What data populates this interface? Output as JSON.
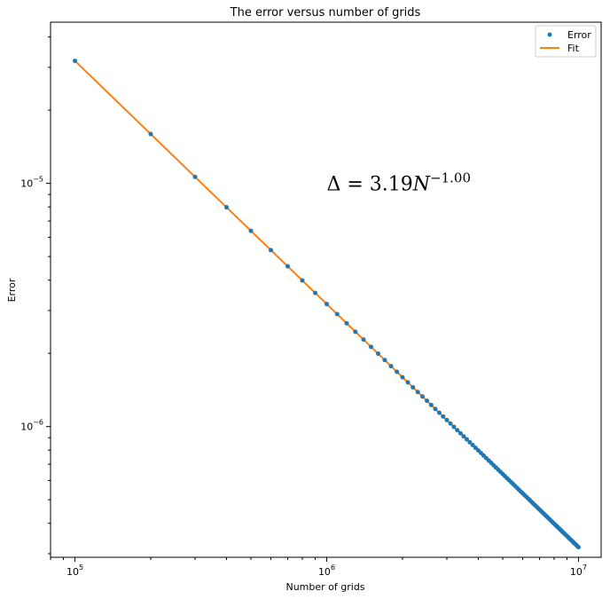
{
  "chart_data": {
    "type": "scatter",
    "title": "The error versus number of grids",
    "xlabel": "Number of grids",
    "ylabel": "Error",
    "xscale": "log",
    "yscale": "log",
    "xlim": [
      80000,
      12300000
    ],
    "ylim": [
      2.9e-07,
      4.6e-05
    ],
    "x_ticks": [
      {
        "value": 100000,
        "base": "10",
        "exp": "5"
      },
      {
        "value": 1000000,
        "base": "10",
        "exp": "6"
      },
      {
        "value": 10000000,
        "base": "10",
        "exp": "7"
      }
    ],
    "y_ticks": [
      {
        "value": 1e-06,
        "base": "10",
        "exp": "−6"
      },
      {
        "value": 1e-05,
        "base": "10",
        "exp": "−5"
      }
    ],
    "grid": false,
    "legend": {
      "position": "top-right",
      "entries": [
        "Error",
        "Fit"
      ]
    },
    "series": [
      {
        "name": "Error",
        "kind": "points",
        "color": "#1f77b4",
        "x_start": 100000,
        "x_step": 100000,
        "x_end": 10000000,
        "y_formula": "3.19 / x",
        "sample_points": [
          {
            "x": 100000,
            "y": 3.19e-05
          },
          {
            "x": 200000,
            "y": 1.595e-05
          },
          {
            "x": 300000,
            "y": 1.063e-05
          },
          {
            "x": 1000000,
            "y": 3.19e-06
          },
          {
            "x": 10000000,
            "y": 3.19e-07
          }
        ]
      },
      {
        "name": "Fit",
        "kind": "line",
        "color": "#ff7f0e",
        "coefficient": 3.19,
        "exponent": -1.0,
        "x_range": [
          100000,
          10000000
        ]
      }
    ],
    "annotation": {
      "prefix": "Δ = 3.19",
      "var": "N",
      "exp": "−1.00",
      "anchor": {
        "x": 1000000,
        "y": 1e-05
      }
    }
  }
}
